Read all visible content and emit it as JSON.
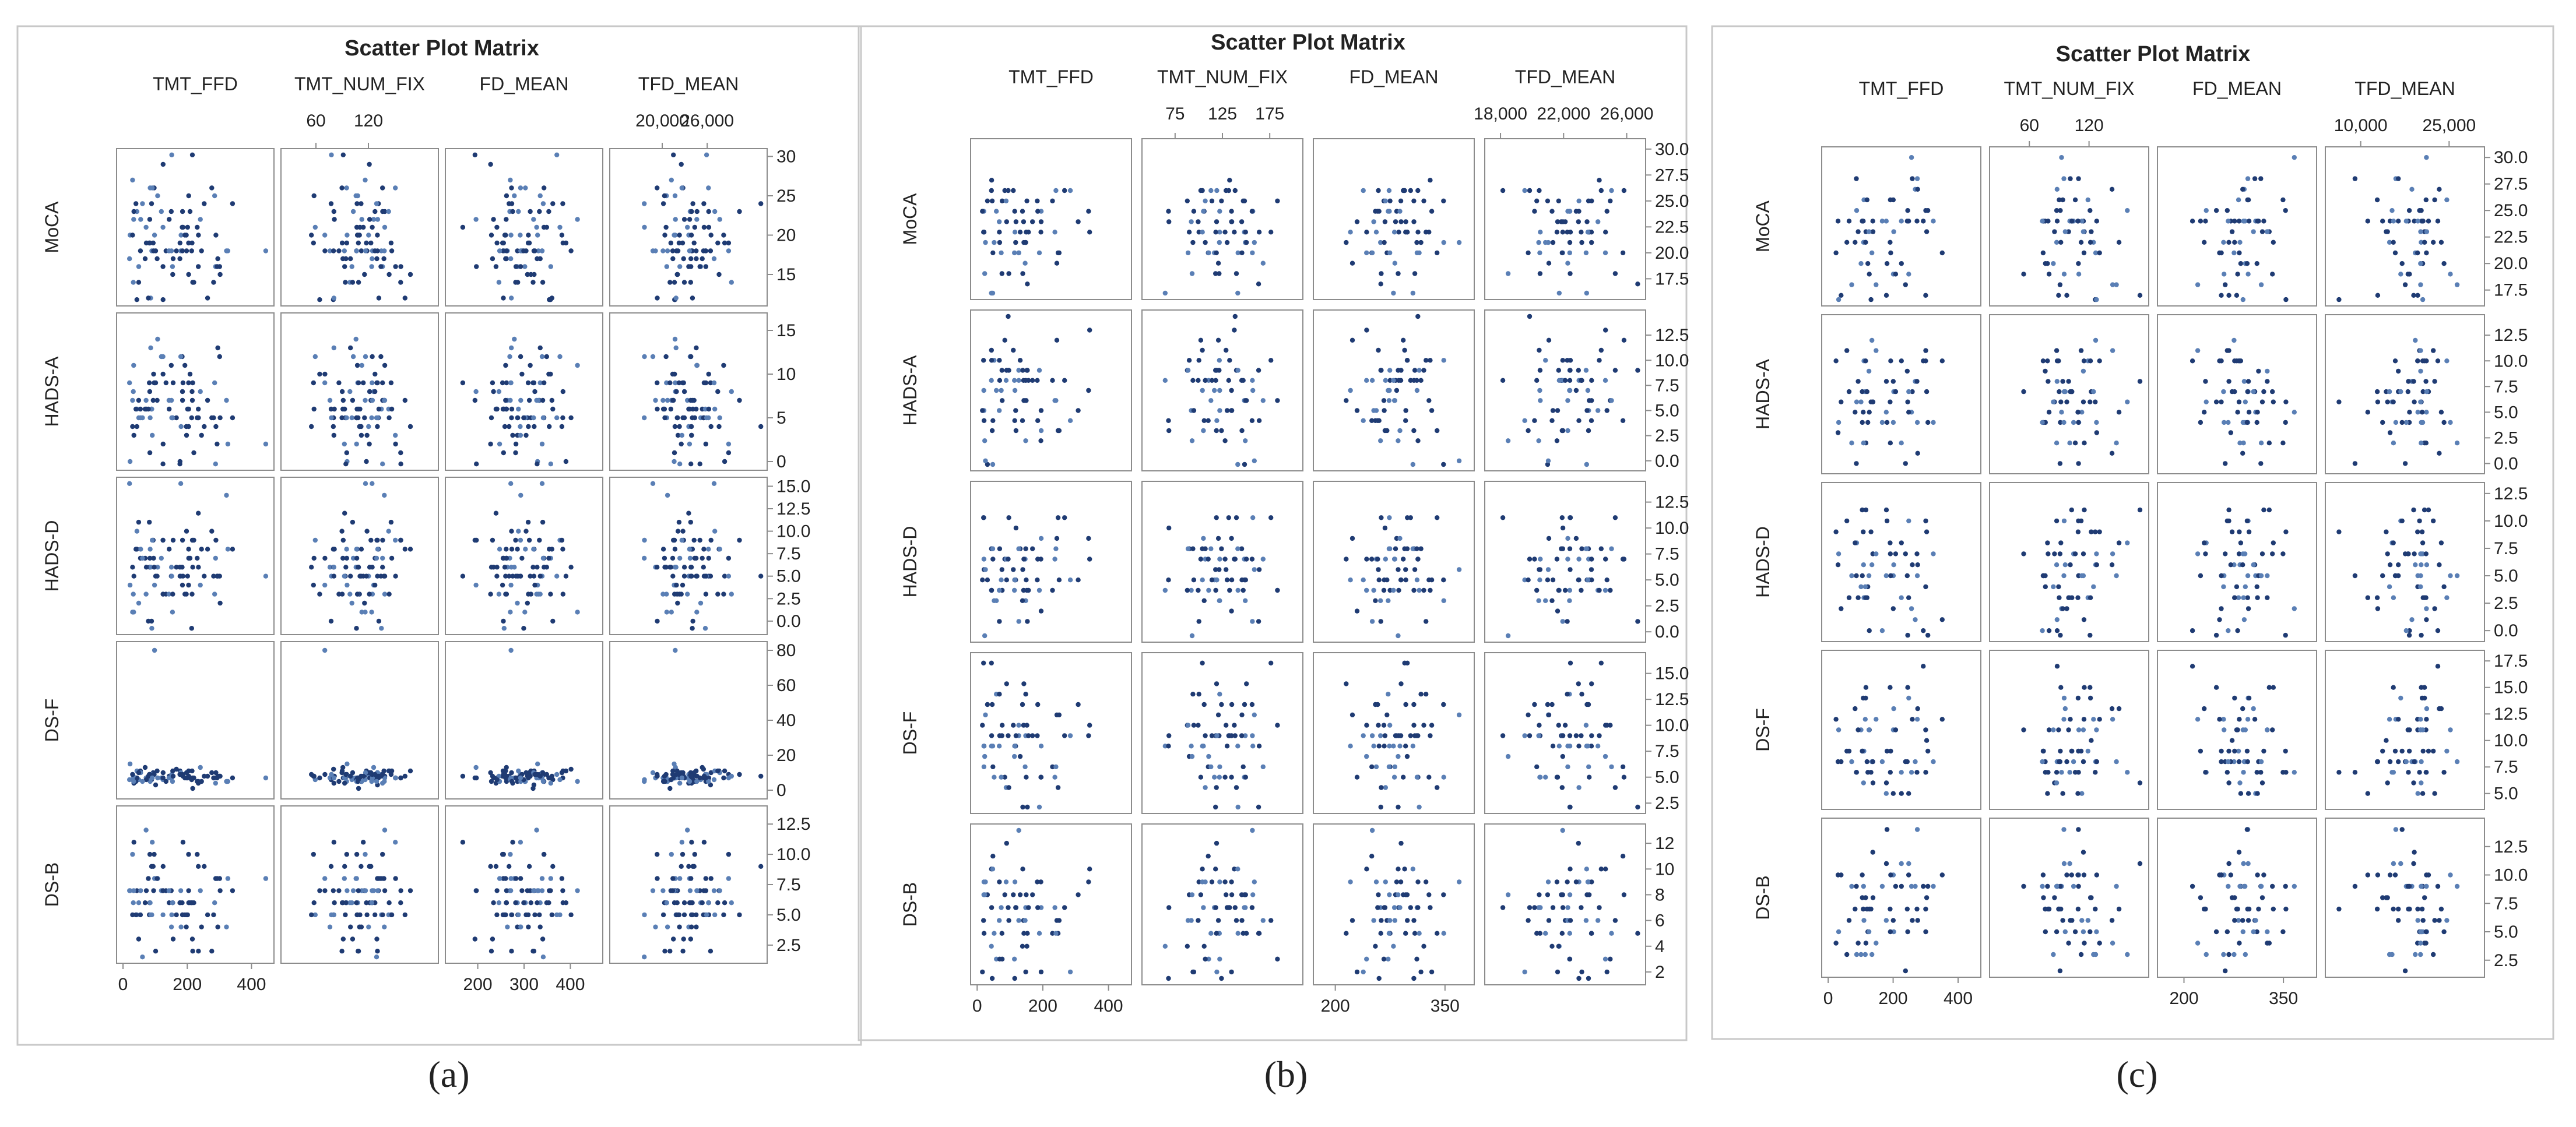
{
  "figure_labels": [
    "(a)",
    "(b)",
    "(c)"
  ],
  "chart_data": [
    {
      "type": "scatter",
      "panel_label": "(a)",
      "title": "Scatter Plot Matrix",
      "x_variables": [
        "TMT_FFD",
        "TMT_NUM_FIX",
        "FD_MEAN",
        "TFD_MEAN"
      ],
      "y_variables": [
        "MoCA",
        "HADS-A",
        "HADS-D",
        "DS-F",
        "DS-B"
      ],
      "x_ranges": [
        [
          -20,
          470
        ],
        [
          20,
          200
        ],
        [
          130,
          470
        ],
        [
          13000,
          34000
        ]
      ],
      "y_ranges": [
        [
          11,
          31
        ],
        [
          -1,
          17
        ],
        [
          -1.5,
          16
        ],
        [
          -5,
          85
        ],
        [
          1,
          14
        ]
      ],
      "x_ticks_top": [
        [],
        [
          "60",
          "120"
        ],
        [],
        [
          "20,000",
          "26,000"
        ]
      ],
      "x_ticks_bottom": [
        [
          "0",
          "200",
          "400"
        ],
        [],
        [
          "200",
          "300",
          "400"
        ],
        []
      ],
      "y_ticks_right": [
        [
          "15",
          "20",
          "25",
          "30"
        ],
        [
          "0",
          "5",
          "10",
          "15"
        ],
        [
          "0.0",
          "2.5",
          "5.0",
          "7.5",
          "10.0",
          "12.5",
          "15.0"
        ],
        [
          "0",
          "20",
          "40",
          "60",
          "80"
        ],
        [
          "2.5",
          "5.0",
          "7.5",
          "10.0",
          "12.5"
        ]
      ],
      "sample_size": 90,
      "seed": 11
    },
    {
      "type": "scatter",
      "panel_label": "(b)",
      "title": "Scatter Plot Matrix",
      "x_variables": [
        "TMT_FFD",
        "TMT_NUM_FIX",
        "FD_MEAN",
        "TFD_MEAN"
      ],
      "y_variables": [
        "MoCA",
        "HADS-A",
        "HADS-D",
        "DS-F",
        "DS-B"
      ],
      "x_ranges": [
        [
          -20,
          470
        ],
        [
          40,
          210
        ],
        [
          170,
          390
        ],
        [
          17000,
          27200
        ]
      ],
      "y_ranges": [
        [
          15.5,
          31
        ],
        [
          -1,
          15
        ],
        [
          -1,
          14.5
        ],
        [
          1.5,
          17
        ],
        [
          1,
          13.5
        ]
      ],
      "x_ticks_top": [
        [],
        [
          "75",
          "125",
          "175"
        ],
        [],
        [
          "18,000",
          "22,000",
          "26,000"
        ]
      ],
      "x_ticks_bottom": [
        [
          "0",
          "200",
          "400"
        ],
        [],
        [
          "200",
          "350"
        ],
        []
      ],
      "y_ticks_right": [
        [
          "17.5",
          "20.0",
          "22.5",
          "25.0",
          "27.5",
          "30.0"
        ],
        [
          "0.0",
          "2.5",
          "5.0",
          "7.5",
          "10.0",
          "12.5"
        ],
        [
          "0.0",
          "2.5",
          "5.0",
          "7.5",
          "10.0",
          "12.5"
        ],
        [
          "2.5",
          "5.0",
          "7.5",
          "10.0",
          "12.5",
          "15.0"
        ],
        [
          "2",
          "4",
          "6",
          "8",
          "10",
          "12"
        ]
      ],
      "sample_size": 65,
      "seed": 23
    },
    {
      "type": "scatter",
      "panel_label": "(c)",
      "title": "Scatter Plot Matrix",
      "x_variables": [
        "TMT_FFD",
        "TMT_NUM_FIX",
        "FD_MEAN",
        "TFD_MEAN"
      ],
      "y_variables": [
        "MoCA",
        "HADS-A",
        "HADS-D",
        "DS-F",
        "DS-B"
      ],
      "x_ranges": [
        [
          -20,
          470
        ],
        [
          20,
          180
        ],
        [
          160,
          400
        ],
        [
          4000,
          31000
        ]
      ],
      "y_ranges": [
        [
          16,
          31
        ],
        [
          -1,
          14.5
        ],
        [
          -1,
          13.5
        ],
        [
          3.5,
          18.5
        ],
        [
          1,
          15
        ]
      ],
      "x_ticks_top": [
        [],
        [
          "60",
          "120"
        ],
        [],
        [
          "10,000",
          "25,000"
        ]
      ],
      "x_ticks_bottom": [
        [
          "0",
          "200",
          "400"
        ],
        [],
        [
          "200",
          "350"
        ],
        []
      ],
      "y_ticks_right": [
        [
          "17.5",
          "20.0",
          "22.5",
          "25.0",
          "27.5",
          "30.0"
        ],
        [
          "0.0",
          "2.5",
          "5.0",
          "7.5",
          "10.0",
          "12.5"
        ],
        [
          "0.0",
          "2.5",
          "5.0",
          "7.5",
          "10.0",
          "12.5"
        ],
        [
          "5.0",
          "7.5",
          "10.0",
          "12.5",
          "15.0",
          "17.5"
        ],
        [
          "2.5",
          "5.0",
          "7.5",
          "10.0",
          "12.5"
        ]
      ],
      "sample_size": 60,
      "seed": 37
    }
  ],
  "colors": {
    "marker": "#1f3b73",
    "marker_light": "#5a7fb5",
    "cell_border": "#8c8c8c",
    "frame_border": "#c8c8c8",
    "text": "#222222"
  }
}
